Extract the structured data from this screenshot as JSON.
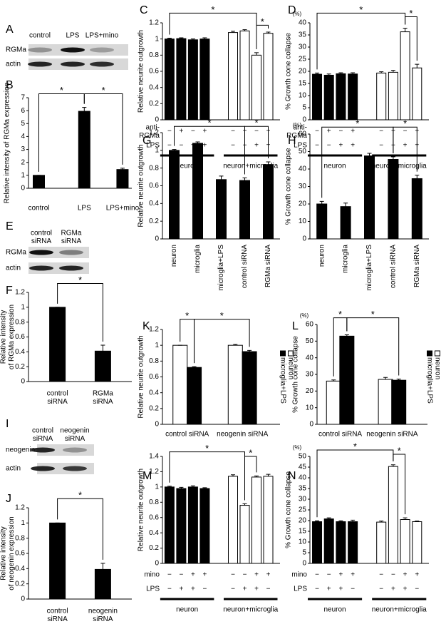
{
  "blots": [
    {
      "panel": "A",
      "lanes": [
        "control",
        "LPS",
        "LPS+mino"
      ],
      "bands": [
        "RGMa",
        "actin"
      ]
    },
    {
      "panel": "E",
      "lanes": [
        "control\nsiRNA",
        "RGMa\nsiRNA"
      ],
      "bands": [
        "RGMa",
        "actin"
      ]
    },
    {
      "panel": "I",
      "lanes": [
        "control\nsiRNA",
        "neogenin\nsiRNA"
      ],
      "bands": [
        "neogenin",
        "actin"
      ]
    }
  ],
  "chart_data": [
    {
      "panel": "B",
      "type": "bar",
      "ylabel": "Relative intensity of RGMa expression",
      "categories": [
        "control",
        "LPS",
        "LPS+mino"
      ],
      "values": [
        1,
        5.95,
        1.45
      ],
      "errors": [
        0,
        0.3,
        0.1
      ],
      "color": "#000000",
      "ylim": [
        0,
        7
      ],
      "yticks": [
        0,
        1,
        2,
        3,
        4,
        5,
        6,
        7
      ],
      "significance": [
        "*",
        "*"
      ]
    },
    {
      "panel": "C",
      "type": "bar",
      "ylabel": "Relative neurite outgrowth",
      "values": [
        1.0,
        1.005,
        0.99,
        1.0,
        1.08,
        1.1,
        0.8,
        1.07
      ],
      "errors": [
        0.01,
        0.01,
        0.01,
        0.015,
        0.015,
        0.015,
        0.03,
        0.015
      ],
      "colors": [
        "#000000",
        "#000000",
        "#000000",
        "#000000",
        "#ffffff",
        "#ffffff",
        "#ffffff",
        "#ffffff"
      ],
      "ylim": [
        0,
        1.2
      ],
      "yticks": [
        0,
        0.2,
        0.4,
        0.6,
        0.8,
        1,
        1.2
      ],
      "conditions": [
        {
          "name": "anti-\nRGMa",
          "marks": [
            "−",
            "+",
            "−",
            "+",
            "−",
            "+",
            "−",
            "+"
          ]
        },
        {
          "name": "LPS",
          "marks": [
            "−",
            "−",
            "+",
            "+",
            "−",
            "−",
            "+",
            "+"
          ]
        }
      ],
      "groups": [
        "neuron",
        "neuron+microglia"
      ],
      "significance": [
        "*",
        "*"
      ]
    },
    {
      "panel": "D",
      "type": "bar",
      "ylabel": "% Growth cone collapse",
      "unit": "(%)",
      "values": [
        18.8,
        18.4,
        19,
        18.9,
        19.3,
        19.6,
        36.3,
        21.4
      ],
      "errors": [
        0.5,
        0.5,
        0.4,
        0.5,
        0.5,
        0.8,
        1.5,
        1.5
      ],
      "colors": [
        "#000000",
        "#000000",
        "#000000",
        "#000000",
        "#ffffff",
        "#ffffff",
        "#ffffff",
        "#ffffff"
      ],
      "ylim": [
        0,
        40
      ],
      "yticks": [
        0,
        5,
        10,
        15,
        20,
        25,
        30,
        35,
        40
      ],
      "conditions": [
        {
          "name": "anti-\nRGMa",
          "marks": [
            "−",
            "+",
            "−",
            "+",
            "−",
            "+",
            "−",
            "+"
          ]
        },
        {
          "name": "LPS",
          "marks": [
            "−",
            "−",
            "+",
            "+",
            "−",
            "−",
            "+",
            "+"
          ]
        }
      ],
      "groups": [
        "neuron",
        "neuron+microglia"
      ],
      "significance": [
        "*",
        "*"
      ]
    },
    {
      "panel": "F",
      "type": "bar",
      "ylabel": "Relative intensity\nof RGMa expression",
      "categories": [
        "control\nsiRNA",
        "RGMa\nsiRNA"
      ],
      "values": [
        1,
        0.41
      ],
      "errors": [
        0,
        0.08
      ],
      "color": "#000000",
      "ylim": [
        0,
        1.2
      ],
      "yticks": [
        0,
        0.2,
        0.4,
        0.6,
        0.8,
        1,
        1.2
      ],
      "significance": [
        "*"
      ]
    },
    {
      "panel": "G",
      "type": "bar",
      "ylabel": "Relative neurite outgrowth",
      "categories": [
        "neuron",
        "microglia",
        "microglia+LPS",
        "control siRNA",
        "RGMa siRNA"
      ],
      "values": [
        1.0,
        1.08,
        0.67,
        0.66,
        0.84
      ],
      "errors": [
        0.01,
        0.015,
        0.04,
        0.03,
        0.03
      ],
      "color": "#000000",
      "ylim": [
        0,
        1.2
      ],
      "yticks": [
        0,
        0.2,
        0.4,
        0.6,
        0.8,
        1,
        1.2
      ],
      "significance": [
        "*",
        "*"
      ]
    },
    {
      "panel": "H",
      "type": "bar",
      "ylabel": "% Growth cone collapse",
      "unit": "(%)",
      "categories": [
        "neuron",
        "microglia",
        "microglia+LPS",
        "control siRNA",
        "RGMa siRNA"
      ],
      "values": [
        20,
        18.5,
        47.5,
        45.5,
        34.5
      ],
      "errors": [
        1.5,
        2,
        1.5,
        1.5,
        2
      ],
      "color": "#000000",
      "ylim": [
        0,
        60
      ],
      "yticks": [
        0,
        10,
        20,
        30,
        40,
        50,
        60
      ],
      "significance": [
        "*",
        "*"
      ]
    },
    {
      "panel": "J",
      "type": "bar",
      "ylabel": "Relative intensity\nof neogenin expression",
      "categories": [
        "control\nsiRNA",
        "neogenin\nsiRNA"
      ],
      "values": [
        1,
        0.39
      ],
      "errors": [
        0,
        0.08
      ],
      "color": "#000000",
      "ylim": [
        0,
        1.2
      ],
      "yticks": [
        0,
        0.2,
        0.4,
        0.6,
        0.8,
        1,
        1.2
      ],
      "significance": [
        "*"
      ]
    },
    {
      "panel": "K",
      "type": "bar",
      "ylabel": "Relative neurite outgrowth",
      "categories": [
        "control siRNA",
        "neogenin siRNA"
      ],
      "series": [
        {
          "name": "neuron",
          "color": "#ffffff",
          "values": [
            1,
            1.0
          ],
          "errors": [
            0,
            0.01
          ]
        },
        {
          "name": "microglia+LPS",
          "color": "#000000",
          "values": [
            0.72,
            0.92
          ],
          "errors": [
            0.01,
            0.015
          ]
        }
      ],
      "ylim": [
        0,
        1.2
      ],
      "yticks": [
        0,
        0.2,
        0.4,
        0.6,
        0.8,
        1,
        1.2
      ],
      "significance": [
        "*",
        "*"
      ]
    },
    {
      "panel": "L",
      "type": "bar",
      "ylabel": "% Growth cone collapse",
      "unit": "(%)",
      "categories": [
        "control siRNA",
        "neogenin siRNA"
      ],
      "series": [
        {
          "name": "neuron",
          "color": "#ffffff",
          "values": [
            26,
            27
          ],
          "errors": [
            0.7,
            1.2
          ]
        },
        {
          "name": "microglia+LPS",
          "color": "#000000",
          "values": [
            53,
            26.5
          ],
          "errors": [
            0.8,
            0.7
          ]
        }
      ],
      "ylim": [
        0,
        60
      ],
      "yticks": [
        0,
        10,
        20,
        30,
        40,
        50,
        60
      ],
      "significance": [
        "*",
        "*"
      ]
    },
    {
      "panel": "M",
      "type": "bar",
      "ylabel": "Relative neurite outgrowth",
      "values": [
        1.0,
        0.98,
        1.0,
        0.98,
        1.14,
        0.76,
        1.13,
        1.14
      ],
      "errors": [
        0.01,
        0.015,
        0.015,
        0.01,
        0.02,
        0.02,
        0.015,
        0.025
      ],
      "colors": [
        "#000000",
        "#000000",
        "#000000",
        "#000000",
        "#ffffff",
        "#ffffff",
        "#ffffff",
        "#ffffff"
      ],
      "ylim": [
        0,
        1.4
      ],
      "yticks": [
        0,
        0.2,
        0.4,
        0.6,
        0.8,
        1,
        1.2,
        1.4
      ],
      "conditions": [
        {
          "name": "mino",
          "marks": [
            "−",
            "−",
            "+",
            "+",
            "−",
            "−",
            "+",
            "+"
          ]
        },
        {
          "name": "LPS",
          "marks": [
            "−",
            "+",
            "+",
            "−",
            "−",
            "+",
            "+",
            "−"
          ]
        }
      ],
      "groups": [
        "neuron",
        "neuron+microglia"
      ],
      "significance": [
        "*",
        "*"
      ]
    },
    {
      "panel": "N",
      "type": "bar",
      "ylabel": "% Growth cone collapse",
      "unit": "(%)",
      "values": [
        19.5,
        20.8,
        19.5,
        19.5,
        19.3,
        45.3,
        20.5,
        19.5
      ],
      "errors": [
        0.4,
        0.5,
        0.4,
        0.7,
        0.5,
        0.8,
        0.8,
        0.3
      ],
      "colors": [
        "#000000",
        "#000000",
        "#000000",
        "#000000",
        "#ffffff",
        "#ffffff",
        "#ffffff",
        "#ffffff"
      ],
      "ylim": [
        0,
        50
      ],
      "yticks": [
        0,
        5,
        10,
        15,
        20,
        25,
        30,
        35,
        40,
        45,
        50
      ],
      "conditions": [
        {
          "name": "mino",
          "marks": [
            "−",
            "−",
            "+",
            "+",
            "−",
            "−",
            "+",
            "+"
          ]
        },
        {
          "name": "LPS",
          "marks": [
            "−",
            "+",
            "+",
            "−",
            "−",
            "+",
            "+",
            "−"
          ]
        }
      ],
      "groups": [
        "neuron",
        "neuron+microglia"
      ],
      "significance": [
        "*",
        "*"
      ]
    }
  ]
}
